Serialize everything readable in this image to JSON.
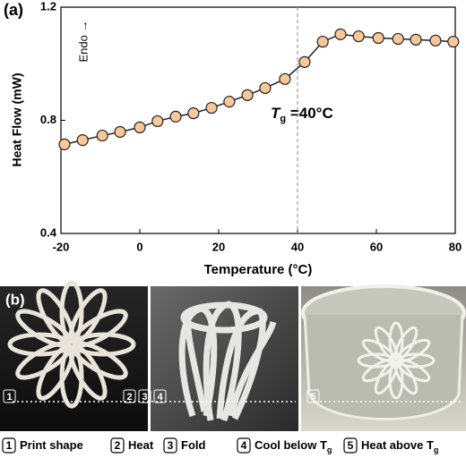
{
  "chart_data": {
    "type": "line",
    "panel_label": "(a)",
    "x_label": "Temperature (°C)",
    "y_label": "Heat Flow (mW)",
    "annotation": "Endo →",
    "tg_annotation": {
      "symbol": "T",
      "subscript": "g",
      "text": " =40°C"
    },
    "vline": 40,
    "x": [
      -19.1,
      -14.5,
      -9.5,
      -5,
      0,
      4.5,
      9.1,
      13.6,
      18.2,
      22.7,
      27.3,
      31.8,
      36.8,
      41.8,
      46.4,
      50.9,
      55.5,
      60.5,
      65.5,
      70,
      75,
      79.5
    ],
    "series": [
      {
        "color": "#f8c898",
        "values": [
          0.715,
          0.73,
          0.746,
          0.759,
          0.775,
          0.797,
          0.813,
          0.825,
          0.844,
          0.866,
          0.889,
          0.914,
          0.946,
          1.006,
          1.078,
          1.104,
          1.097,
          1.091,
          1.088,
          1.085,
          1.082,
          1.078
        ]
      }
    ],
    "xlim": [
      -20,
      80
    ],
    "xticks": [
      -20,
      0,
      20,
      40,
      60,
      80
    ],
    "ylim": [
      0.4,
      1.2
    ],
    "yticks": [
      0.4,
      0.8,
      1.2
    ]
  },
  "photos": {
    "panel_label": "(b)",
    "markers": [
      "1",
      "2",
      "3",
      "4",
      "5"
    ]
  },
  "steps": [
    {
      "number": "1",
      "label": "Print shape",
      "subscript": null
    },
    {
      "number": "2",
      "label": "Heat",
      "subscript": null
    },
    {
      "number": "3",
      "label": "Fold",
      "subscript": null
    },
    {
      "number": "4",
      "label": "Cool below T",
      "subscript": "g"
    },
    {
      "number": "5",
      "label": "Heat above T",
      "subscript": "g"
    }
  ]
}
